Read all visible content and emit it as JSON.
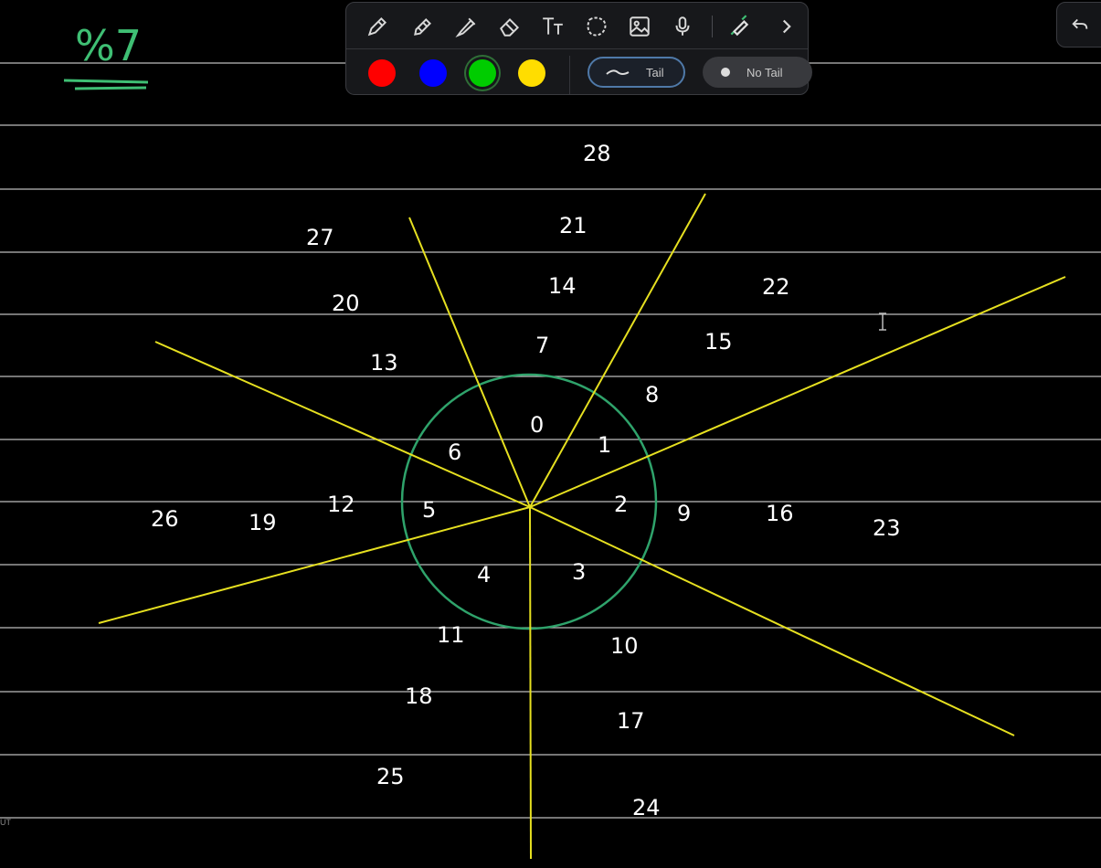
{
  "header_note": "%7",
  "toolbar": {
    "tools": [
      "pen-icon",
      "pencil-icon",
      "marker-icon",
      "eraser-icon",
      "text-icon",
      "lasso-icon",
      "image-icon",
      "microphone-icon",
      "highlighter-icon",
      "chevron-right-icon"
    ],
    "colors": [
      "#ff0000",
      "#0000ff",
      "#00cc00",
      "#ffdd00"
    ],
    "selected_color": "#00cc00",
    "tail_label": "Tail",
    "no_tail_label": "No Tail"
  },
  "undo": {
    "icon": "undo-icon"
  },
  "edge_label": "UT",
  "drawing": {
    "circle_color": "#2fa36b",
    "ray_color": "#e6e020",
    "line_color": "#d8d8d8",
    "numbers": [
      "0",
      "1",
      "2",
      "3",
      "4",
      "5",
      "6",
      "7",
      "8",
      "9",
      "10",
      "11",
      "12",
      "13",
      "14",
      "15",
      "16",
      "17",
      "18",
      "19",
      "20",
      "21",
      "22",
      "23",
      "24",
      "25",
      "26",
      "27",
      "28"
    ]
  }
}
